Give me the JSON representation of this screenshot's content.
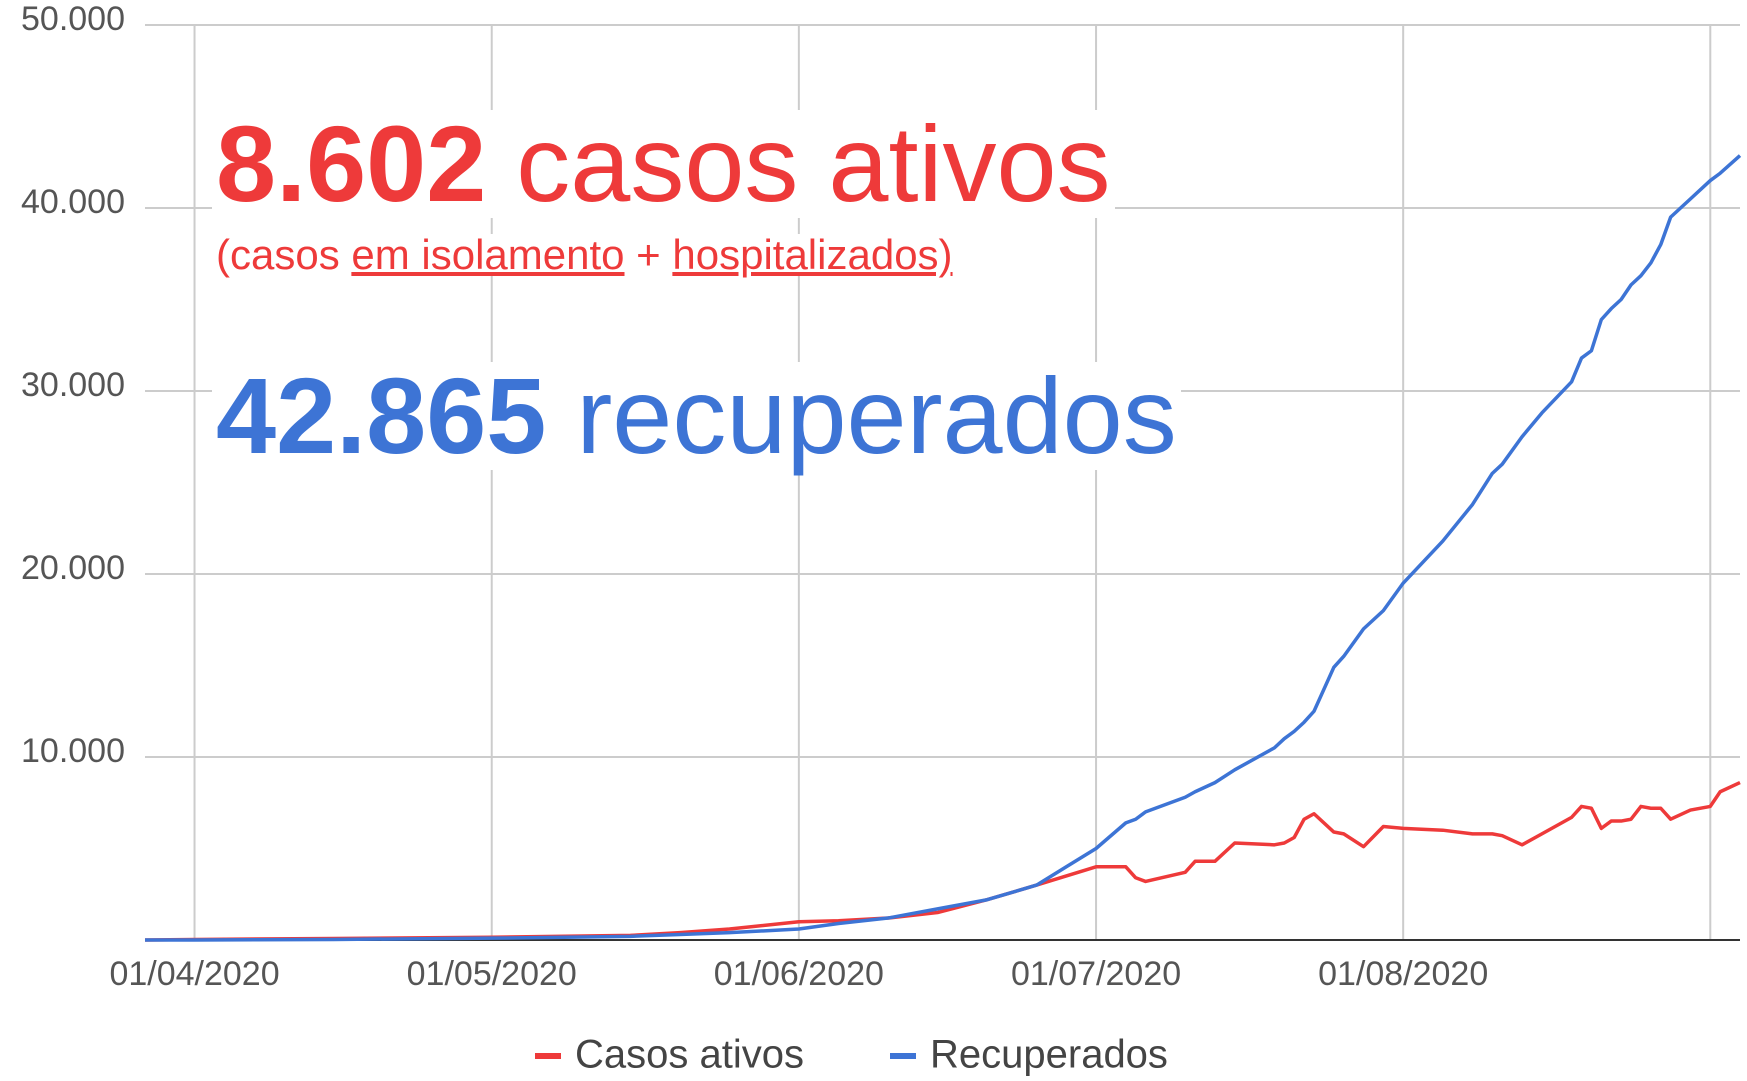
{
  "chart_data": {
    "type": "line",
    "annotations": {
      "active_value": "8.602",
      "active_text": "casos ativos",
      "note_open": "(casos",
      "note_isolation": "em isolamento",
      "note_plus": "+",
      "note_hospital": "hospitalizados)",
      "recovered_value": "42.865",
      "recovered_text": "recuperados"
    },
    "x": [
      "27/03/2020",
      "01/04/2020",
      "15/04/2020",
      "01/05/2020",
      "15/05/2020",
      "20/05/2020",
      "25/05/2020",
      "01/06/2020",
      "05/06/2020",
      "10/06/2020",
      "15/06/2020",
      "20/06/2020",
      "25/06/2020",
      "28/06/2020",
      "01/07/2020",
      "04/07/2020",
      "05/07/2020",
      "06/07/2020",
      "10/07/2020",
      "11/07/2020",
      "13/07/2020",
      "15/07/2020",
      "19/07/2020",
      "20/07/2020",
      "21/07/2020",
      "22/07/2020",
      "23/07/2020",
      "25/07/2020",
      "26/07/2020",
      "28/07/2020",
      "30/07/2020",
      "01/08/2020",
      "05/08/2020",
      "08/08/2020",
      "10/08/2020",
      "11/08/2020",
      "13/08/2020",
      "15/08/2020",
      "18/08/2020",
      "19/08/2020",
      "20/08/2020",
      "21/08/2020",
      "22/08/2020",
      "23/08/2020",
      "24/08/2020",
      "25/08/2020",
      "26/08/2020",
      "27/08/2020",
      "28/08/2020",
      "30/08/2020",
      "01/09/2020",
      "02/09/2020",
      "04/09/2020"
    ],
    "series": [
      {
        "name": "Casos ativos",
        "color": "#ee3a3a",
        "values": [
          0,
          30,
          80,
          150,
          250,
          400,
          600,
          1000,
          1050,
          1200,
          1500,
          2200,
          3000,
          3500,
          4000,
          4000,
          3400,
          3200,
          3700,
          4300,
          4300,
          5300,
          5200,
          5300,
          5600,
          6600,
          6900,
          5900,
          5800,
          5100,
          6200,
          6100,
          6000,
          5800,
          5800,
          5700,
          5200,
          5800,
          6700,
          7300,
          7200,
          6100,
          6500,
          6500,
          6600,
          7300,
          7200,
          7200,
          6600,
          7100,
          7300,
          8100,
          8602
        ]
      },
      {
        "name": "Recuperados",
        "color": "#3d74d5",
        "values": [
          0,
          0,
          30,
          100,
          200,
          300,
          400,
          600,
          900,
          1200,
          1700,
          2200,
          3000,
          4000,
          5000,
          6400,
          6600,
          7000,
          7800,
          8100,
          8600,
          9300,
          10500,
          11000,
          11400,
          11900,
          12500,
          14900,
          15500,
          17000,
          18000,
          19500,
          21800,
          23800,
          25500,
          26000,
          27500,
          28800,
          30500,
          31800,
          32200,
          33900,
          34500,
          35000,
          35800,
          36300,
          37000,
          38000,
          39500,
          40500,
          41500,
          41900,
          42865
        ]
      }
    ],
    "xlim": [
      "27/03/2020",
      "04/09/2020"
    ],
    "xticks": [
      "01/04/2020",
      "01/05/2020",
      "01/06/2020",
      "01/07/2020",
      "01/08/2020",
      "01/09/2020"
    ],
    "xtick_labels_shown": [
      "01/04/2020",
      "01/05/2020",
      "01/06/2020",
      "01/07/2020",
      "01/08/2020"
    ],
    "ylim": [
      0,
      50000
    ],
    "yticks": [
      {
        "value": 10000,
        "label": "10.000"
      },
      {
        "value": 20000,
        "label": "20.000"
      },
      {
        "value": 30000,
        "label": "30.000"
      },
      {
        "value": 40000,
        "label": "40.000"
      },
      {
        "value": 50000,
        "label": "50.000"
      }
    ],
    "grid": true,
    "legend": "bottom"
  }
}
